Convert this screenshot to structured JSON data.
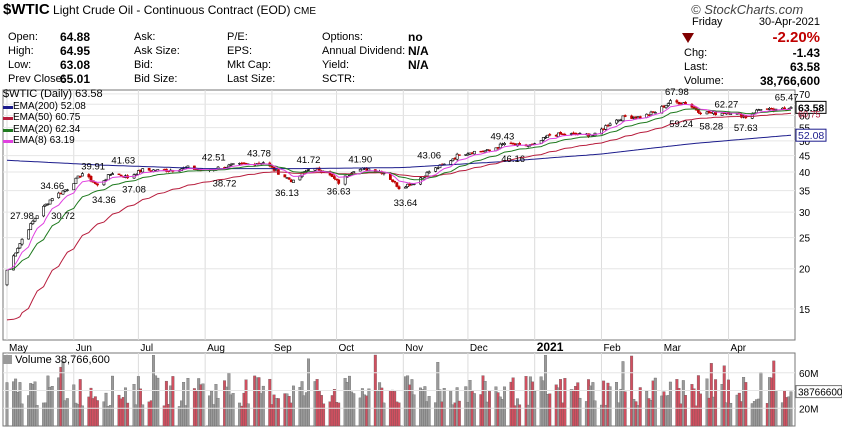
{
  "header": {
    "symbol": "$WTIC",
    "name": "Light Crude Oil - Continuous Contract (EOD)",
    "exchange": "CME",
    "logo": "© StockCharts.com",
    "fields": [
      {
        "label": "Open:",
        "value": "64.88"
      },
      {
        "label": "High:",
        "value": "64.95"
      },
      {
        "label": "Low:",
        "value": "63.08"
      },
      {
        "label": "Prev Close:",
        "value": "65.01"
      }
    ],
    "col2": [
      "Ask:",
      "Ask Size:",
      "Bid:",
      "Bid Size:"
    ],
    "col3": [
      "P/E:",
      "EPS:",
      "Mkt Cap:",
      "Last Size:"
    ],
    "col4": [
      {
        "label": "Options:",
        "value": "no"
      },
      {
        "label": "Annual Dividend:",
        "value": "N/A"
      },
      {
        "label": "Yield:",
        "value": "N/A"
      },
      {
        "label": "SCTR:",
        "value": ""
      }
    ],
    "date_day": "Friday",
    "date": "30-Apr-2021",
    "change_pct": "-2.20%",
    "quote": [
      {
        "label": "Chg:",
        "value": "-1.43"
      },
      {
        "label": "Last:",
        "value": "63.58"
      },
      {
        "label": "Volume:",
        "value": "38,766,600"
      }
    ]
  },
  "legend": {
    "title": "$WTIC (Daily) 63.58",
    "items": [
      {
        "label": "EMA(200) 52.08",
        "color": "#1c1c8c"
      },
      {
        "label": "EMA(50) 60.75",
        "color": "#b71c3c"
      },
      {
        "label": "EMA(20) 62.34",
        "color": "#1e7a1e"
      },
      {
        "label": "EMA(8) 63.19",
        "color": "#e040e0"
      }
    ]
  },
  "volume_panel": {
    "title": "Volume 38,766,600"
  },
  "chart_data": {
    "type": "candlestick",
    "y_scale": "log",
    "ylim": [
      12,
      72
    ],
    "y_ticks": [
      15,
      20,
      25,
      30,
      35,
      40,
      45,
      50,
      55,
      60,
      65,
      70
    ],
    "x_labels": [
      "May",
      "Jun",
      "Jul",
      "Aug",
      "Sep",
      "Oct",
      "Nov",
      "Dec",
      "2021",
      "Feb",
      "Mar",
      "Apr"
    ],
    "price_path": [
      [
        "2020-05-01",
        19.8
      ],
      [
        "2020-05-08",
        24.7
      ],
      [
        "2020-05-15",
        29.4
      ],
      [
        "2020-05-22",
        33.3
      ],
      [
        "2020-05-29",
        35.5
      ],
      [
        "2020-06-05",
        39.6
      ],
      [
        "2020-06-12",
        36.3
      ],
      [
        "2020-06-19",
        39.8
      ],
      [
        "2020-06-26",
        38.5
      ],
      [
        "2020-07-03",
        40.6
      ],
      [
        "2020-07-10",
        40.5
      ],
      [
        "2020-07-17",
        40.6
      ],
      [
        "2020-07-24",
        41.3
      ],
      [
        "2020-07-31",
        40.3
      ],
      [
        "2020-08-07",
        41.2
      ],
      [
        "2020-08-14",
        42.0
      ],
      [
        "2020-08-21",
        42.3
      ],
      [
        "2020-08-28",
        42.9
      ],
      [
        "2020-09-04",
        39.8
      ],
      [
        "2020-09-11",
        37.3
      ],
      [
        "2020-09-18",
        41.1
      ],
      [
        "2020-09-25",
        40.3
      ],
      [
        "2020-10-02",
        37.1
      ],
      [
        "2020-10-09",
        40.6
      ],
      [
        "2020-10-16",
        40.9
      ],
      [
        "2020-10-23",
        39.9
      ],
      [
        "2020-10-30",
        35.8
      ],
      [
        "2020-11-06",
        37.1
      ],
      [
        "2020-11-13",
        40.1
      ],
      [
        "2020-11-20",
        42.2
      ],
      [
        "2020-11-27",
        45.5
      ],
      [
        "2020-12-04",
        46.3
      ],
      [
        "2020-12-11",
        46.6
      ],
      [
        "2020-12-18",
        49.1
      ],
      [
        "2020-12-25",
        48.2
      ],
      [
        "2021-01-01",
        48.5
      ],
      [
        "2021-01-08",
        52.2
      ],
      [
        "2021-01-15",
        52.4
      ],
      [
        "2021-01-22",
        52.3
      ],
      [
        "2021-01-29",
        52.2
      ],
      [
        "2021-02-05",
        56.9
      ],
      [
        "2021-02-12",
        59.5
      ],
      [
        "2021-02-19",
        59.2
      ],
      [
        "2021-02-26",
        61.5
      ],
      [
        "2021-03-05",
        66.1
      ],
      [
        "2021-03-12",
        65.6
      ],
      [
        "2021-03-19",
        61.4
      ],
      [
        "2021-03-26",
        60.9
      ],
      [
        "2021-04-02",
        61.4
      ],
      [
        "2021-04-09",
        59.3
      ],
      [
        "2021-04-16",
        63.1
      ],
      [
        "2021-04-23",
        62.1
      ],
      [
        "2021-04-30",
        63.58
      ]
    ],
    "ema200_path": [
      [
        "2020-05-01",
        43.5
      ],
      [
        "2020-06-15",
        42.0
      ],
      [
        "2020-08-01",
        41.0
      ],
      [
        "2020-09-15",
        41.0
      ],
      [
        "2020-11-01",
        41.3
      ],
      [
        "2020-12-15",
        43.0
      ],
      [
        "2021-02-01",
        45.5
      ],
      [
        "2021-03-15",
        49.0
      ],
      [
        "2021-04-30",
        52.08
      ]
    ],
    "annotations": [
      {
        "text": "27.98",
        "date": "2020-05-08",
        "price": 27.98,
        "pos": "above"
      },
      {
        "text": "30.72",
        "date": "2020-05-27",
        "price": 30.72,
        "pos": "below"
      },
      {
        "text": "34.66",
        "date": "2020-05-22",
        "price": 34.66,
        "pos": "above"
      },
      {
        "text": "34.36",
        "date": "2020-06-15",
        "price": 34.36,
        "pos": "below"
      },
      {
        "text": "39.91",
        "date": "2020-06-10",
        "price": 39.91,
        "pos": "above"
      },
      {
        "text": "37.08",
        "date": "2020-06-29",
        "price": 37.08,
        "pos": "below"
      },
      {
        "text": "41.63",
        "date": "2020-06-24",
        "price": 41.63,
        "pos": "above"
      },
      {
        "text": "42.51",
        "date": "2020-08-05",
        "price": 42.51,
        "pos": "above"
      },
      {
        "text": "38.72",
        "date": "2020-08-10",
        "price": 38.72,
        "pos": "below"
      },
      {
        "text": "43.78",
        "date": "2020-08-26",
        "price": 43.78,
        "pos": "above"
      },
      {
        "text": "36.13",
        "date": "2020-09-08",
        "price": 36.13,
        "pos": "below"
      },
      {
        "text": "41.72",
        "date": "2020-09-18",
        "price": 41.72,
        "pos": "above"
      },
      {
        "text": "36.63",
        "date": "2020-10-02",
        "price": 36.63,
        "pos": "below"
      },
      {
        "text": "41.90",
        "date": "2020-10-12",
        "price": 41.9,
        "pos": "above"
      },
      {
        "text": "33.64",
        "date": "2020-11-02",
        "price": 33.64,
        "pos": "below"
      },
      {
        "text": "43.06",
        "date": "2020-11-13",
        "price": 43.06,
        "pos": "above"
      },
      {
        "text": "46.16",
        "date": "2020-12-22",
        "price": 46.16,
        "pos": "below"
      },
      {
        "text": "49.43",
        "date": "2020-12-17",
        "price": 49.43,
        "pos": "above"
      },
      {
        "text": "67.98",
        "date": "2021-03-08",
        "price": 67.98,
        "pos": "above"
      },
      {
        "text": "59.24",
        "date": "2021-03-10",
        "price": 59.24,
        "pos": "below"
      },
      {
        "text": "62.27",
        "date": "2021-03-31",
        "price": 62.27,
        "pos": "above"
      },
      {
        "text": "58.28",
        "date": "2021-03-24",
        "price": 58.28,
        "pos": "below"
      },
      {
        "text": "57.63",
        "date": "2021-04-09",
        "price": 57.63,
        "pos": "below"
      },
      {
        "text": "65.47",
        "date": "2021-04-28",
        "price": 65.47,
        "pos": "above"
      }
    ],
    "last_price": {
      "value": "63.58",
      "color": "#000000"
    },
    "ema200_last": {
      "value": "52.08",
      "color": "#1c1c8c"
    },
    "last_value_partial": "60.75",
    "volume": {
      "y_ticks": [
        "60M",
        "40M",
        "20M"
      ],
      "y_max": 80000000,
      "last_label": "38766600"
    },
    "colors": {
      "up": "#9a9a9a",
      "down": "#d05060",
      "ema50": "#b71c3c",
      "ema20": "#1e7a1e",
      "ema8": "#e040e0",
      "ema200": "#1c1c8c"
    }
  }
}
